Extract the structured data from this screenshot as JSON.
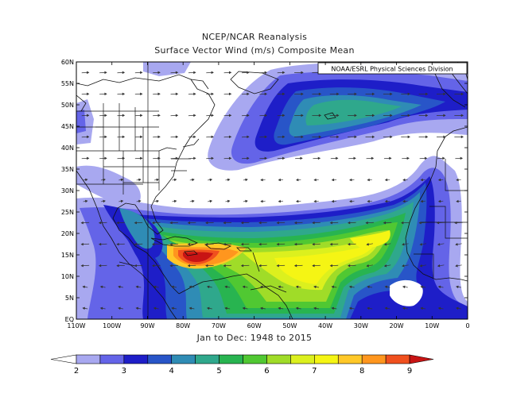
{
  "header": {
    "title": "NCEP/NCAR Reanalysis",
    "subtitle": "Surface Vector Wind (m/s) Composite Mean"
  },
  "map": {
    "credit": "NOAA/ESRL Physical Sciences Division",
    "period": "Jan to Dec: 1948 to 2015",
    "lat_labels": [
      "60N",
      "55N",
      "50N",
      "45N",
      "40N",
      "35N",
      "30N",
      "25N",
      "20N",
      "15N",
      "10N",
      "5N",
      "EQ"
    ],
    "lon_labels": [
      "110W",
      "100W",
      "90W",
      "80W",
      "70W",
      "60W",
      "50W",
      "40W",
      "30W",
      "20W",
      "10W",
      "0"
    ],
    "lon_range": [
      -110,
      0
    ],
    "lat_range": [
      0,
      60
    ]
  },
  "colorbar": {
    "labels": [
      "2",
      "3",
      "4",
      "5",
      "6",
      "7",
      "8",
      "9"
    ],
    "colors": [
      "#ffffff",
      "#a8a8f0",
      "#6464e8",
      "#1e1ec8",
      "#2855c8",
      "#2f8cb5",
      "#2fa88c",
      "#28b450",
      "#50c832",
      "#a0dc28",
      "#dcf01e",
      "#f5f514",
      "#ffc828",
      "#ff961e",
      "#f0501e",
      "#c81414"
    ]
  }
}
